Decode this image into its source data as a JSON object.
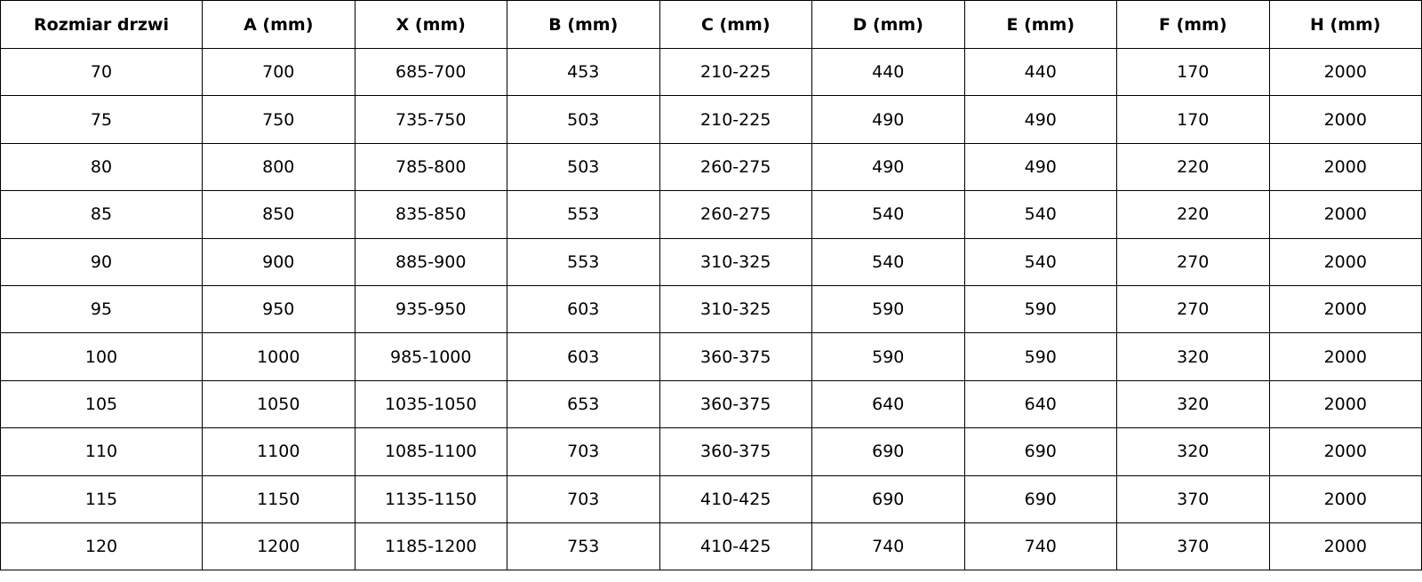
{
  "headers": [
    "Rozmiar drzwi",
    "A (mm)",
    "X (mm)",
    "B (mm)",
    "C (mm)",
    "D (mm)",
    "E (mm)",
    "F (mm)",
    "H (mm)"
  ],
  "rows": [
    [
      "70",
      "700",
      "685-700",
      "453",
      "210-225",
      "440",
      "440",
      "170",
      "2000"
    ],
    [
      "75",
      "750",
      "735-750",
      "503",
      "210-225",
      "490",
      "490",
      "170",
      "2000"
    ],
    [
      "80",
      "800",
      "785-800",
      "503",
      "260-275",
      "490",
      "490",
      "220",
      "2000"
    ],
    [
      "85",
      "850",
      "835-850",
      "553",
      "260-275",
      "540",
      "540",
      "220",
      "2000"
    ],
    [
      "90",
      "900",
      "885-900",
      "553",
      "310-325",
      "540",
      "540",
      "270",
      "2000"
    ],
    [
      "95",
      "950",
      "935-950",
      "603",
      "310-325",
      "590",
      "590",
      "270",
      "2000"
    ],
    [
      "100",
      "1000",
      "985-1000",
      "603",
      "360-375",
      "590",
      "590",
      "320",
      "2000"
    ],
    [
      "105",
      "1050",
      "1035-1050",
      "653",
      "360-375",
      "640",
      "640",
      "320",
      "2000"
    ],
    [
      "110",
      "1100",
      "1085-1100",
      "703",
      "360-375",
      "690",
      "690",
      "320",
      "2000"
    ],
    [
      "115",
      "1150",
      "1135-1150",
      "703",
      "410-425",
      "690",
      "690",
      "370",
      "2000"
    ],
    [
      "120",
      "1200",
      "1185-1200",
      "753",
      "410-425",
      "740",
      "740",
      "370",
      "2000"
    ]
  ]
}
